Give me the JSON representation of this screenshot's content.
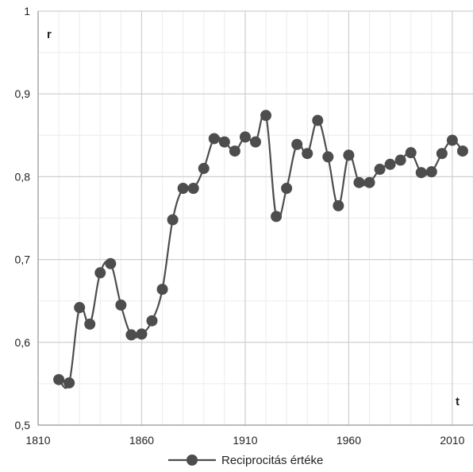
{
  "chart_data": {
    "type": "line",
    "x_axis": {
      "min": 1810,
      "max": 2020,
      "ticks": [
        1810,
        1860,
        1910,
        1960,
        2010
      ],
      "tick_labels": [
        "1810",
        "1860",
        "1910",
        "1960",
        "2010"
      ],
      "variable_label": "t",
      "minor_step": 10
    },
    "y_axis": {
      "min": 0.5,
      "max": 1.0,
      "ticks": [
        0.5,
        0.6,
        0.7,
        0.8,
        0.9,
        1.0
      ],
      "tick_labels": [
        "0,5",
        "0,6",
        "0,7",
        "0,8",
        "0,9",
        "1"
      ],
      "variable_label": "r",
      "minor_step": 0.05
    },
    "grid": true,
    "legend_position": "bottom-center",
    "series": [
      {
        "name": "Reciprocitás értéke",
        "color": "#4d4d4d",
        "x": [
          1820,
          1825,
          1830,
          1835,
          1840,
          1845,
          1850,
          1855,
          1860,
          1865,
          1870,
          1875,
          1880,
          1885,
          1890,
          1895,
          1900,
          1905,
          1910,
          1915,
          1920,
          1925,
          1930,
          1935,
          1940,
          1945,
          1950,
          1955,
          1960,
          1965,
          1970,
          1975,
          1980,
          1985,
          1990,
          1995,
          2000,
          2005,
          2010,
          2015
        ],
        "y": [
          0.555,
          0.551,
          0.642,
          0.622,
          0.684,
          0.695,
          0.645,
          0.609,
          0.61,
          0.626,
          0.664,
          0.748,
          0.786,
          0.786,
          0.81,
          0.846,
          0.842,
          0.831,
          0.848,
          0.842,
          0.874,
          0.752,
          0.786,
          0.839,
          0.828,
          0.868,
          0.824,
          0.765,
          0.826,
          0.793,
          0.793,
          0.809,
          0.815,
          0.82,
          0.829,
          0.805,
          0.806,
          0.828,
          0.844,
          0.831
        ]
      }
    ]
  }
}
